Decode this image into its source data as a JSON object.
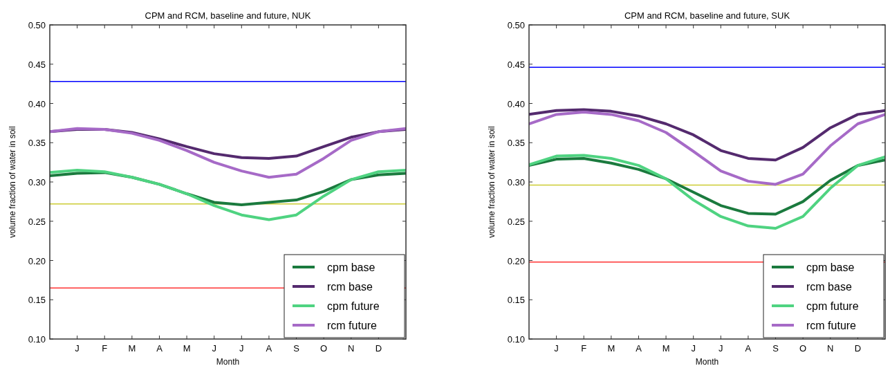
{
  "chart_data": [
    {
      "type": "line",
      "title": "CPM and RCM, baseline and future, NUK",
      "xlabel": "Month",
      "ylabel": "volume fraction of water in soil",
      "categories": [
        null,
        "J",
        "F",
        "M",
        "A",
        "M",
        "J",
        "J",
        "A",
        "S",
        "O",
        "N",
        "D",
        null
      ],
      "ylim": [
        0.1,
        0.5
      ],
      "yticks": [
        {
          "value": 0.1,
          "label": "0.10"
        },
        {
          "value": 0.15,
          "label": "0.15"
        },
        {
          "value": 0.2,
          "label": "0.20"
        },
        {
          "value": 0.25,
          "label": "0.25"
        },
        {
          "value": 0.3,
          "label": "0.30"
        },
        {
          "value": 0.35,
          "label": "0.35"
        },
        {
          "value": 0.4,
          "label": "0.40"
        },
        {
          "value": 0.45,
          "label": "0.45"
        },
        {
          "value": 0.5,
          "label": "0.50"
        }
      ],
      "grid": false,
      "legend": "bottom right",
      "line_style": "solid",
      "series": [
        {
          "name": "cpm base",
          "color": "#1b7a3e",
          "values": [
            0.308,
            0.311,
            0.312,
            0.306,
            0.297,
            0.285,
            0.274,
            0.271,
            0.274,
            0.277,
            0.288,
            0.303,
            0.309,
            0.311
          ]
        },
        {
          "name": "rcm base",
          "color": "#542a6e",
          "values": [
            0.364,
            0.367,
            0.367,
            0.363,
            0.355,
            0.345,
            0.336,
            0.331,
            0.33,
            0.333,
            0.345,
            0.357,
            0.364,
            0.367
          ]
        },
        {
          "name": "cpm future",
          "color": "#4fd381",
          "values": [
            0.312,
            0.315,
            0.313,
            0.306,
            0.297,
            0.285,
            0.27,
            0.258,
            0.252,
            0.258,
            0.282,
            0.303,
            0.313,
            0.315
          ]
        },
        {
          "name": "rcm future",
          "color": "#a66ac7",
          "values": [
            0.364,
            0.368,
            0.367,
            0.362,
            0.353,
            0.34,
            0.325,
            0.314,
            0.306,
            0.31,
            0.33,
            0.353,
            0.364,
            0.368
          ]
        }
      ],
      "ref_lines": [
        {
          "axis": "y",
          "value": 0.428,
          "color": "#0000ff"
        },
        {
          "axis": "y",
          "value": 0.272,
          "color": "#cccc33"
        },
        {
          "axis": "y",
          "value": 0.165,
          "color": "#ff3333"
        }
      ]
    },
    {
      "type": "line",
      "title": "CPM and RCM, baseline and future, SUK",
      "xlabel": "Month",
      "ylabel": "volume fraction of water in soil",
      "categories": [
        null,
        "J",
        "F",
        "M",
        "A",
        "M",
        "J",
        "J",
        "A",
        "S",
        "O",
        "N",
        "D",
        null
      ],
      "ylim": [
        0.1,
        0.5
      ],
      "yticks": [
        {
          "value": 0.1,
          "label": "0.10"
        },
        {
          "value": 0.15,
          "label": "0.15"
        },
        {
          "value": 0.2,
          "label": "0.20"
        },
        {
          "value": 0.25,
          "label": "0.25"
        },
        {
          "value": 0.3,
          "label": "0.30"
        },
        {
          "value": 0.35,
          "label": "0.35"
        },
        {
          "value": 0.4,
          "label": "0.40"
        },
        {
          "value": 0.45,
          "label": "0.45"
        },
        {
          "value": 0.5,
          "label": "0.50"
        }
      ],
      "grid": false,
      "legend": "bottom right",
      "line_style": "solid",
      "series": [
        {
          "name": "cpm base",
          "color": "#1b7a3e",
          "values": [
            0.321,
            0.329,
            0.33,
            0.324,
            0.316,
            0.304,
            0.287,
            0.27,
            0.26,
            0.259,
            0.275,
            0.302,
            0.321,
            0.328
          ]
        },
        {
          "name": "rcm base",
          "color": "#542a6e",
          "values": [
            0.386,
            0.391,
            0.392,
            0.39,
            0.384,
            0.374,
            0.36,
            0.34,
            0.33,
            0.328,
            0.344,
            0.369,
            0.386,
            0.391
          ]
        },
        {
          "name": "cpm future",
          "color": "#4fd381",
          "values": [
            0.322,
            0.333,
            0.334,
            0.33,
            0.321,
            0.304,
            0.277,
            0.256,
            0.244,
            0.241,
            0.256,
            0.292,
            0.321,
            0.332
          ]
        },
        {
          "name": "rcm future",
          "color": "#a66ac7",
          "values": [
            0.374,
            0.386,
            0.389,
            0.386,
            0.378,
            0.363,
            0.339,
            0.314,
            0.301,
            0.297,
            0.31,
            0.346,
            0.374,
            0.386
          ]
        }
      ],
      "ref_lines": [
        {
          "axis": "y",
          "value": 0.446,
          "color": "#0000ff"
        },
        {
          "axis": "y",
          "value": 0.296,
          "color": "#cccc33"
        },
        {
          "axis": "y",
          "value": 0.198,
          "color": "#ff3333"
        }
      ]
    }
  ]
}
